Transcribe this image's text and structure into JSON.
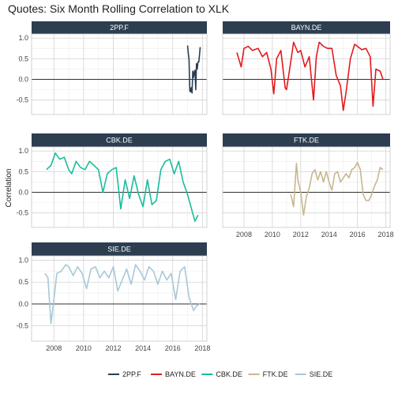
{
  "chart_data": {
    "type": "line",
    "title": "Quotes: Six Month Rolling Correlation to XLK",
    "xlabel": "",
    "ylabel": "Correlation",
    "xlim": [
      2006.5,
      2018.3
    ],
    "ylim": [
      -0.85,
      1.1
    ],
    "x_ticks": [
      2008,
      2010,
      2012,
      2014,
      2016,
      2018
    ],
    "x_tick_labels": [
      "2008",
      "2010",
      "2012",
      "2014",
      "2016",
      "2018"
    ],
    "y_ticks": [
      1.0,
      0.5,
      0.0,
      -0.5
    ],
    "y_tick_labels": [
      "1.0",
      "0.5",
      "0.0",
      "-0.5"
    ],
    "reference_line": 0,
    "grid": true,
    "legend_position": "bottom",
    "colors": {
      "strip": "#2c3e50",
      "panel_border": "#c8c8c8",
      "grid_major": "#d3d3d3",
      "grid_minor": "#ececec",
      "zero_line": "#1a1a1a"
    },
    "series": [
      {
        "name": "2PP.F",
        "color": "#2c3e50",
        "x": [
          2017.0,
          2017.05,
          2017.1,
          2017.15,
          2017.2,
          2017.25,
          2017.3,
          2017.35,
          2017.4,
          2017.45,
          2017.5,
          2017.55,
          2017.6,
          2017.65,
          2017.7,
          2017.75,
          2017.8,
          2017.85
        ],
        "y": [
          0.82,
          0.62,
          0.48,
          -0.28,
          -0.3,
          -0.2,
          -0.33,
          0.2,
          0.05,
          0.18,
          0.22,
          -0.25,
          0.38,
          0.25,
          0.42,
          0.42,
          0.58,
          0.78
        ]
      },
      {
        "name": "BAYN.DE",
        "color": "#e31a1c",
        "x": [
          2007.5,
          2007.8,
          2008.0,
          2008.3,
          2008.6,
          2009.0,
          2009.3,
          2009.6,
          2009.9,
          2010.1,
          2010.3,
          2010.6,
          2010.9,
          2011.0,
          2011.2,
          2011.5,
          2011.8,
          2012.0,
          2012.3,
          2012.6,
          2012.9,
          2013.1,
          2013.3,
          2013.6,
          2013.9,
          2014.2,
          2014.5,
          2014.8,
          2015.0,
          2015.2,
          2015.5,
          2015.8,
          2016.0,
          2016.3,
          2016.6,
          2016.9,
          2017.1,
          2017.3,
          2017.6,
          2017.8
        ],
        "y": [
          0.65,
          0.3,
          0.75,
          0.8,
          0.7,
          0.75,
          0.55,
          0.65,
          0.25,
          -0.35,
          0.5,
          0.7,
          -0.2,
          -0.25,
          0.2,
          0.9,
          0.65,
          0.7,
          0.3,
          0.55,
          -0.5,
          0.55,
          0.9,
          0.8,
          0.75,
          0.75,
          0.1,
          -0.15,
          -0.75,
          -0.3,
          0.5,
          0.85,
          0.8,
          0.72,
          0.75,
          0.55,
          -0.65,
          0.25,
          0.2,
          0.0
        ]
      },
      {
        "name": "CBK.DE",
        "color": "#1abc9c",
        "x": [
          2007.5,
          2007.8,
          2008.1,
          2008.4,
          2008.7,
          2009.0,
          2009.2,
          2009.5,
          2009.8,
          2010.1,
          2010.4,
          2010.7,
          2011.0,
          2011.3,
          2011.6,
          2011.9,
          2012.2,
          2012.5,
          2012.8,
          2013.1,
          2013.4,
          2013.7,
          2014.0,
          2014.3,
          2014.6,
          2014.9,
          2015.2,
          2015.5,
          2015.8,
          2016.1,
          2016.4,
          2016.7,
          2017.0,
          2017.3,
          2017.5,
          2017.7
        ],
        "y": [
          0.55,
          0.65,
          0.95,
          0.8,
          0.85,
          0.55,
          0.45,
          0.75,
          0.6,
          0.55,
          0.75,
          0.65,
          0.55,
          0.0,
          0.45,
          0.55,
          0.6,
          -0.4,
          0.3,
          -0.15,
          0.4,
          -0.05,
          -0.35,
          0.3,
          -0.3,
          -0.2,
          0.55,
          0.75,
          0.8,
          0.45,
          0.75,
          0.25,
          -0.05,
          -0.45,
          -0.7,
          -0.55
        ]
      },
      {
        "name": "FTK.DE",
        "color": "#c8b68e",
        "x": [
          2011.3,
          2011.5,
          2011.7,
          2011.8,
          2012.0,
          2012.2,
          2012.4,
          2012.6,
          2012.8,
          2013.0,
          2013.2,
          2013.4,
          2013.6,
          2013.8,
          2014.0,
          2014.2,
          2014.4,
          2014.6,
          2014.8,
          2015.0,
          2015.2,
          2015.4,
          2015.6,
          2015.8,
          2016.0,
          2016.2,
          2016.4,
          2016.6,
          2016.8,
          2017.0,
          2017.2,
          2017.4,
          2017.6,
          2017.8
        ],
        "y": [
          -0.05,
          -0.35,
          0.7,
          0.3,
          0.0,
          -0.55,
          -0.1,
          0.1,
          0.45,
          0.55,
          0.3,
          0.5,
          0.25,
          0.5,
          0.25,
          0.05,
          0.45,
          0.5,
          0.25,
          0.35,
          0.45,
          0.35,
          0.55,
          0.6,
          0.72,
          0.55,
          -0.05,
          -0.2,
          -0.2,
          -0.05,
          0.15,
          0.3,
          0.6,
          0.55
        ]
      },
      {
        "name": "SIE.DE",
        "color": "#a6c8d8",
        "x": [
          2007.4,
          2007.6,
          2007.8,
          2008.0,
          2008.2,
          2008.5,
          2008.8,
          2009.0,
          2009.3,
          2009.6,
          2009.9,
          2010.2,
          2010.5,
          2010.8,
          2011.1,
          2011.4,
          2011.7,
          2012.0,
          2012.3,
          2012.6,
          2012.9,
          2013.2,
          2013.5,
          2013.8,
          2014.1,
          2014.4,
          2014.7,
          2015.0,
          2015.3,
          2015.6,
          2015.9,
          2016.2,
          2016.5,
          2016.8,
          2017.1,
          2017.4,
          2017.6,
          2017.8
        ],
        "y": [
          0.7,
          0.6,
          -0.45,
          0.1,
          0.7,
          0.75,
          0.9,
          0.85,
          0.65,
          0.85,
          0.7,
          0.35,
          0.8,
          0.85,
          0.6,
          0.75,
          0.6,
          0.85,
          0.3,
          0.55,
          0.8,
          0.45,
          0.9,
          0.75,
          0.55,
          0.85,
          0.75,
          0.45,
          0.75,
          0.55,
          0.7,
          0.1,
          0.75,
          0.85,
          0.15,
          -0.15,
          -0.05,
          0.0
        ]
      }
    ]
  }
}
